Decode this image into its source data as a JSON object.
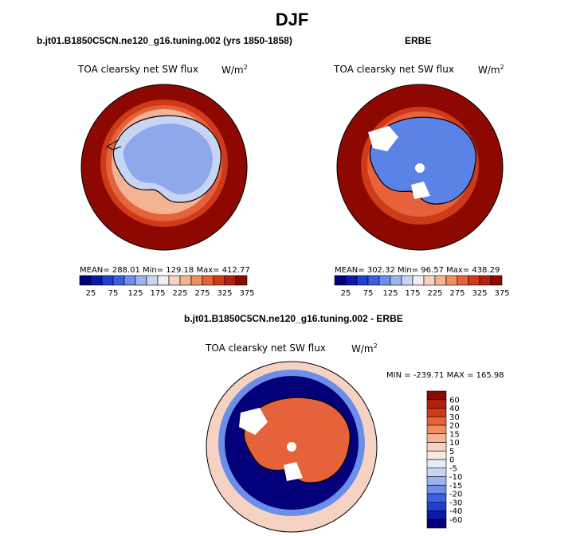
{
  "page": {
    "title": "DJF",
    "panel_top_left": {
      "case": "b.jt01.B1850C5CN.ne120_g16.tuning.002 (yrs 1850-1858)",
      "field": "TOA clearsky net SW flux",
      "units_base": "W/m",
      "units_exp": "2",
      "stats": "MEAN= 288.01   Min= 129.18   Max= 412.77"
    },
    "panel_top_right": {
      "case": "ERBE",
      "field": "TOA clearsky net SW flux",
      "units_base": "W/m",
      "units_exp": "2",
      "stats": "MEAN= 302.32   Min=   96.57   Max= 438.29"
    },
    "panel_bottom": {
      "case": "b.jt01.B1850C5CN.ne120_g16.tuning.002 - ERBE",
      "field": "TOA clearsky net SW flux",
      "units_base": "W/m",
      "units_exp": "2",
      "stats": "MIN = -239.71  MAX = 165.98"
    }
  },
  "colorbars": {
    "absolute": {
      "labels": [
        "25",
        "75",
        "125",
        "175",
        "225",
        "275",
        "325",
        "375"
      ],
      "colors": [
        "#04007a",
        "#0a19a8",
        "#1f3fd0",
        "#3a62e0",
        "#6b8ee8",
        "#9cb3ee",
        "#c8d5f2",
        "#f2eef0",
        "#f6d2c2",
        "#f4b394",
        "#ef8d63",
        "#e6623a",
        "#cf3a18",
        "#b3200b",
        "#8c0800"
      ]
    },
    "difference": {
      "labels": [
        "60",
        "40",
        "30",
        "20",
        "15",
        "10",
        "5",
        "0",
        "-5",
        "-10",
        "-15",
        "-20",
        "-30",
        "-40",
        "-60"
      ],
      "colors": [
        "#8c0800",
        "#b3200b",
        "#cf3a18",
        "#e6623a",
        "#ef8d63",
        "#f4b394",
        "#f6d2c2",
        "#fbe8df",
        "#e6ecf6",
        "#c8d5f2",
        "#9cb3ee",
        "#6b8ee8",
        "#3a62e0",
        "#1f3fd0",
        "#0a19a8",
        "#04007a"
      ]
    },
    "map_colors": {
      "ocean_high": "#8c0800",
      "ring_mid": "#e6623a",
      "ring_light": "#f4b394",
      "ice_light": "#c8d5f2",
      "ice_mid": "#8fa8ec",
      "ice_erbe": "#5b82e6",
      "diff_land": "#e6623a",
      "diff_ocean": "#04007a",
      "diff_far": "#f6d2c2"
    }
  },
  "chart_data": [
    {
      "type": "heatmap",
      "title": "DJF",
      "subtitle": "b.jt01.B1850C5CN.ne120_g16.tuning.002 (yrs 1850-1858)",
      "field": "TOA clearsky net SW flux",
      "units": "W/m2",
      "projection": "south polar stereographic",
      "mean": 288.01,
      "min": 129.18,
      "max": 412.77,
      "colorbar_levels": [
        25,
        75,
        125,
        175,
        225,
        275,
        325,
        375
      ]
    },
    {
      "type": "heatmap",
      "title": "DJF",
      "subtitle": "ERBE",
      "field": "TOA clearsky net SW flux",
      "units": "W/m2",
      "projection": "south polar stereographic",
      "mean": 302.32,
      "min": 96.57,
      "max": 438.29,
      "colorbar_levels": [
        25,
        75,
        125,
        175,
        225,
        275,
        325,
        375
      ]
    },
    {
      "type": "heatmap",
      "title": "DJF",
      "subtitle": "b.jt01.B1850C5CN.ne120_g16.tuning.002 - ERBE",
      "field": "TOA clearsky net SW flux",
      "units": "W/m2",
      "projection": "south polar stereographic",
      "min": -239.71,
      "max": 165.98,
      "colorbar_levels": [
        -60,
        -40,
        -30,
        -20,
        -15,
        -10,
        -5,
        0,
        5,
        10,
        15,
        20,
        30,
        40,
        60
      ]
    }
  ]
}
